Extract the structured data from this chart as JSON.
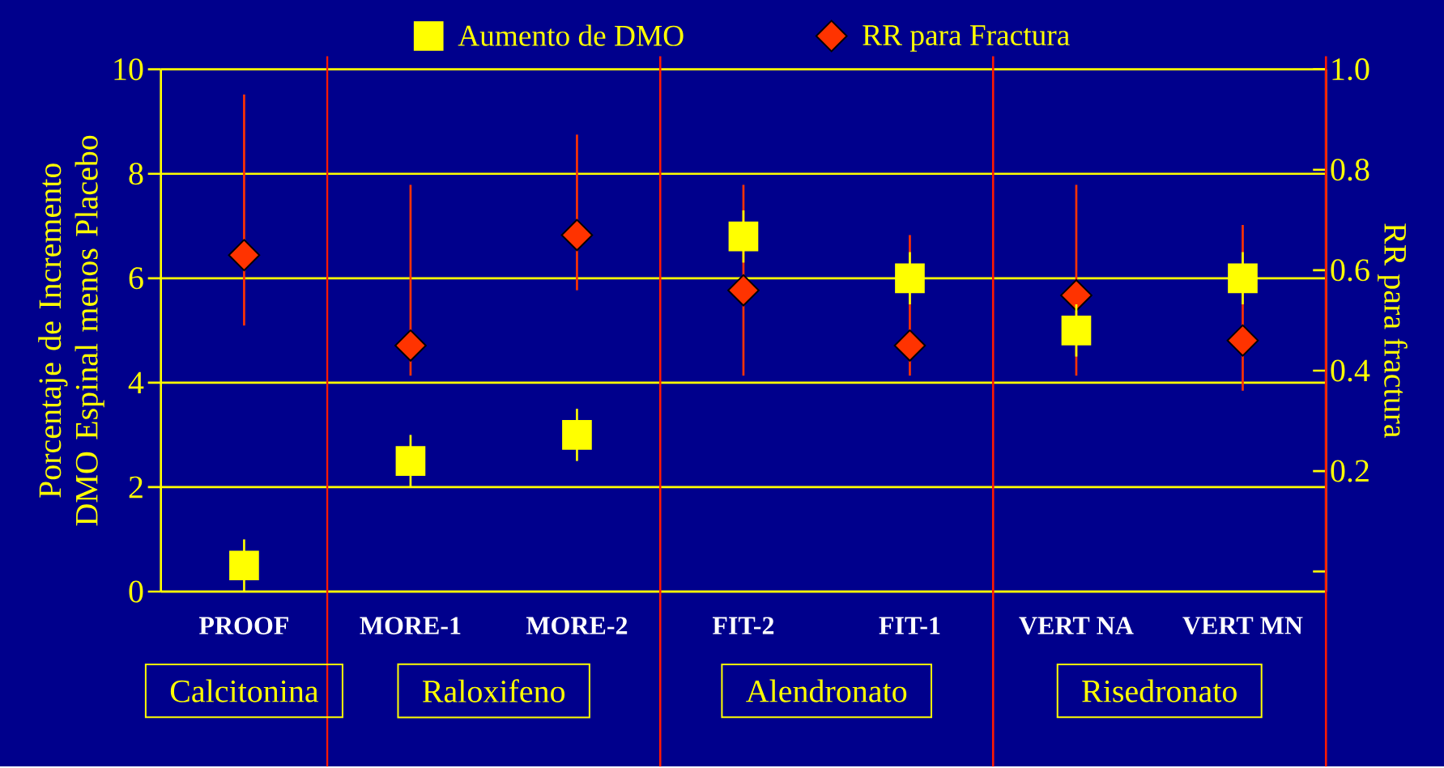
{
  "chart_data": {
    "type": "scatter",
    "categories": [
      "PROOF",
      "MORE-1",
      "MORE-2",
      "FIT-2",
      "FIT-1",
      "VERT NA",
      "VERT MN"
    ],
    "ylabel": "Porcentaje de Incremento DMO Espinal menos Placebo",
    "y2label": "RR para fractura",
    "ylim": [
      0,
      10
    ],
    "yticks": [
      0,
      2,
      4,
      6,
      8,
      10
    ],
    "y2lim": [
      -0.04,
      1.0
    ],
    "y2ticks": [
      {
        "value": 0,
        "label": null
      },
      0.2,
      0.4,
      0.6,
      0.8,
      {
        "value": 1.0,
        "label": "1.0"
      }
    ],
    "grid": "y",
    "legend": "top",
    "series": [
      {
        "name": "Aumento de DMO",
        "color": "#ffff00",
        "marker": "square",
        "values": [
          0.5,
          2.5,
          3.0,
          6.8,
          6.0,
          5.0,
          6.0
        ],
        "errors": [
          [
            0,
            1
          ],
          [
            2,
            3
          ],
          [
            2.5,
            3.5
          ],
          [
            6.3,
            7.3
          ],
          [
            5.5,
            6.5
          ],
          [
            4.5,
            5.5
          ],
          [
            5.5,
            6.5
          ]
        ]
      },
      {
        "name": "RR para Fractura",
        "color": "#ff3300",
        "marker": "diamond",
        "axis": "y2",
        "values": [
          0.63,
          0.45,
          0.67,
          0.56,
          0.45,
          0.55,
          0.46
        ],
        "errors": [
          [
            0.49,
            0.95
          ],
          [
            0.39,
            0.77
          ],
          [
            0.56,
            0.87
          ],
          [
            0.39,
            0.77
          ],
          [
            0.39,
            0.67
          ],
          [
            0.39,
            0.77
          ],
          [
            0.36,
            0.69
          ]
        ]
      }
    ],
    "annotations": [
      "Calcitonina",
      "Raloxifeno",
      "Alendronato",
      "Risedronato"
    ]
  }
}
